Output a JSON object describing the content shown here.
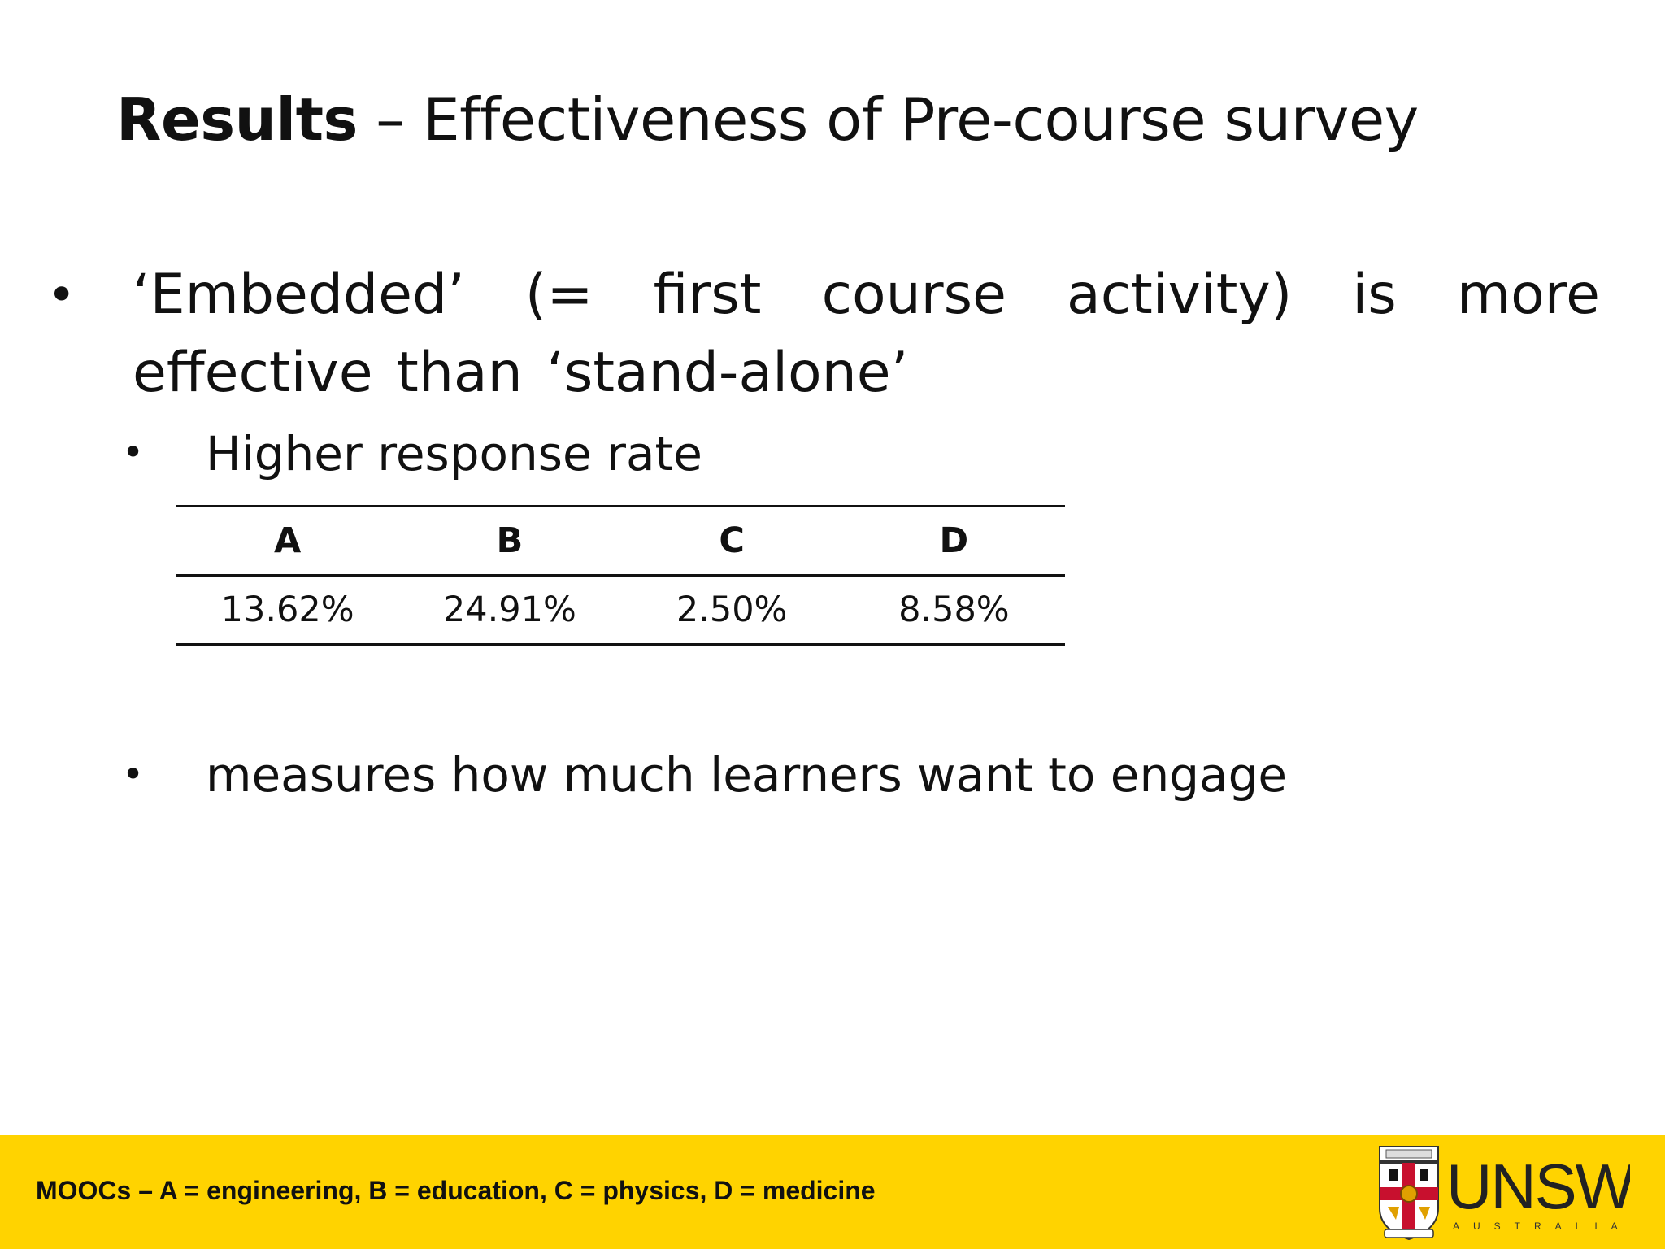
{
  "slide": {
    "title_bold": "Results",
    "title_rest": " – Effectiveness of Pre-course survey",
    "bullet_main": "‘Embedded’ (= first course activity) is more effective than ‘stand-alone’",
    "sub_bullet_1": "Higher response rate",
    "sub_bullet_2": "measures how much learners want to engage",
    "bullet_glyph": "•"
  },
  "response_table": {
    "headers": [
      "A",
      "B",
      "C",
      "D"
    ],
    "values": [
      "13.62%",
      "24.91%",
      "2.50%",
      "8.58%"
    ]
  },
  "footer": {
    "note": "MOOCs – A = engineering, B = education, C = physics, D = medicine",
    "background": "#ffd300",
    "logo": {
      "name": "UNSW",
      "subtitle": "AUSTRALIA"
    }
  }
}
